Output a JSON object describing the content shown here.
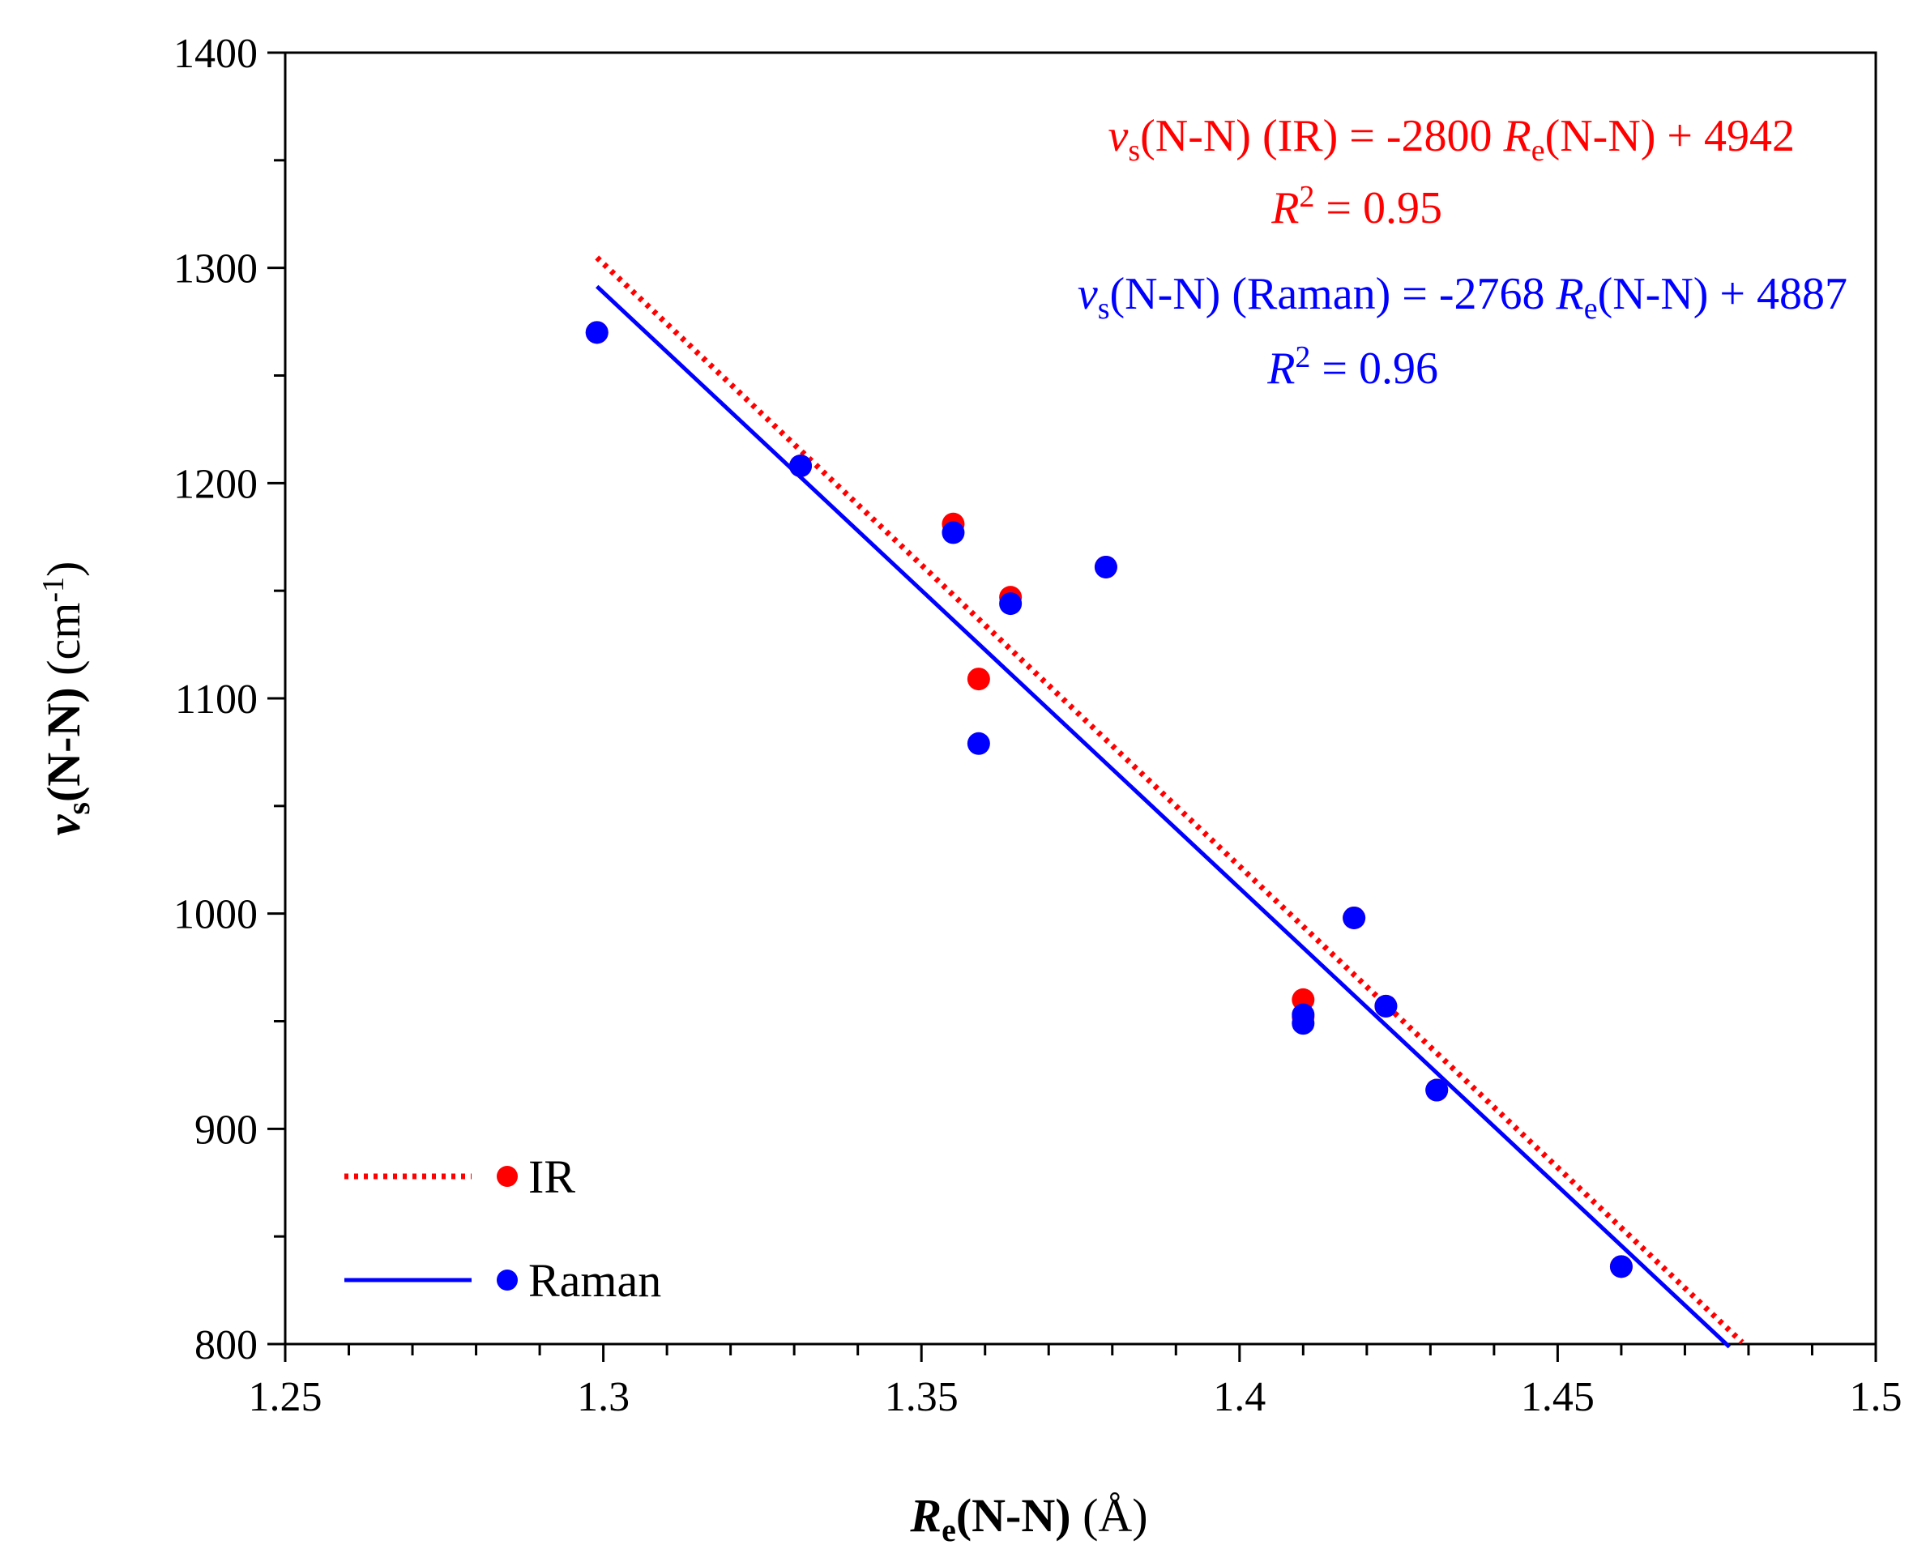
{
  "chart_data": {
    "type": "scatter",
    "xlabel": "Re(N-N) (Å)",
    "ylabel": "vs(N-N) (cm-1)",
    "xlim": [
      1.25,
      1.5
    ],
    "ylim": [
      800,
      1400
    ],
    "x_ticks": [
      "1.25",
      "1.3",
      "1.35",
      "1.4",
      "1.45",
      "1.5"
    ],
    "y_ticks": [
      "800",
      "900",
      "1000",
      "1100",
      "1200",
      "1300",
      "1400"
    ],
    "grid": false,
    "legend_position": "bottom-left",
    "series": [
      {
        "name": "IR",
        "color": "#ff0000",
        "marker": "circle",
        "line_style": "dotted",
        "fit": {
          "slope": -2800,
          "intercept": 4942,
          "r2": "0.95",
          "x_range": [
            1.299,
            1.479
          ]
        },
        "points": [
          [
            1.299,
            1270
          ],
          [
            1.331,
            1208
          ],
          [
            1.355,
            1181
          ],
          [
            1.364,
            1147
          ],
          [
            1.359,
            1109
          ],
          [
            1.379,
            1161
          ],
          [
            1.418,
            998
          ],
          [
            1.41,
            960
          ],
          [
            1.41,
            952
          ],
          [
            1.423,
            957
          ],
          [
            1.431,
            918
          ],
          [
            1.46,
            836
          ]
        ]
      },
      {
        "name": "Raman",
        "color": "#0000ff",
        "marker": "circle",
        "line_style": "solid",
        "fit": {
          "slope": -2768,
          "intercept": 4887,
          "r2": "0.96",
          "x_range": [
            1.299,
            1.477
          ]
        },
        "points": [
          [
            1.299,
            1270
          ],
          [
            1.331,
            1208
          ],
          [
            1.355,
            1177
          ],
          [
            1.364,
            1144
          ],
          [
            1.359,
            1079
          ],
          [
            1.379,
            1161
          ],
          [
            1.418,
            998
          ],
          [
            1.41,
            953
          ],
          [
            1.41,
            949
          ],
          [
            1.423,
            957
          ],
          [
            1.431,
            918
          ],
          [
            1.46,
            836
          ]
        ]
      }
    ],
    "annotations": {
      "ir_equation": {
        "v": "v",
        "sub_s": "s",
        "lhs": "(N-N) (IR)  = -2800 ",
        "r": "R",
        "sub_e": "e",
        "rhs": "(N-N) + 4942",
        "r2_symbol": "R",
        "r2_sup": "2",
        "r2_value": " = 0.95"
      },
      "raman_equation": {
        "v": "v",
        "sub_s": "s",
        "lhs": "(N-N) (Raman) = -2768 ",
        "r": "R",
        "sub_e": "e",
        "rhs": "(N-N) + 4887",
        "r2_symbol": "R",
        "r2_sup": "2",
        "r2_value": " = 0.96"
      }
    },
    "axis_titles": {
      "x": {
        "main": "R",
        "sub": "e",
        "rest": "(N-N)",
        "unit": " (Å)"
      },
      "y": {
        "main": "v",
        "sub": "s",
        "rest": "(N-N)",
        "unit_open": " (cm",
        "unit_sup": "-1",
        "unit_close": ")"
      }
    }
  }
}
